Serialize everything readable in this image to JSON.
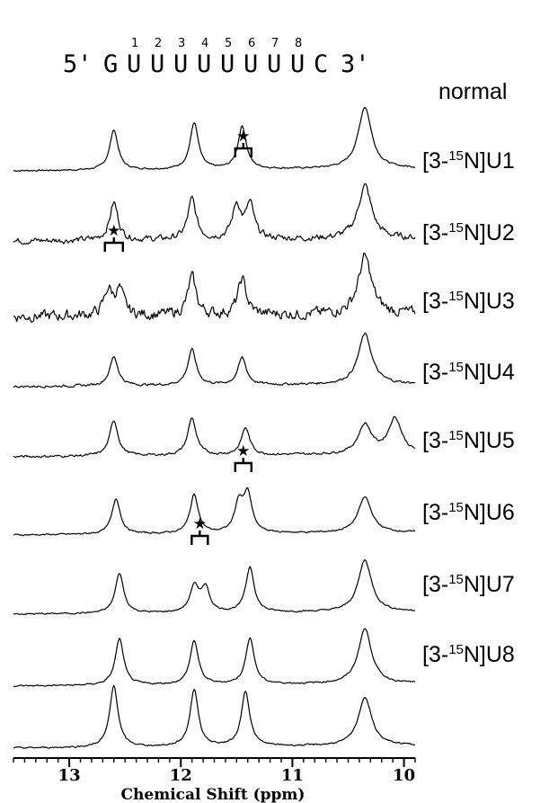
{
  "sequence": {
    "prefix": "5'",
    "bases": [
      "G",
      "U",
      "U",
      "U",
      "U",
      "U",
      "U",
      "U",
      "U",
      "C"
    ],
    "suffix": "3'",
    "position_numbers": [
      "1",
      "2",
      "3",
      "4",
      "5",
      "6",
      "7",
      "8"
    ]
  },
  "chart_data": {
    "type": "line",
    "xlabel": "Chemical Shift (ppm)",
    "xlim": [
      13.5,
      9.9
    ],
    "x_reversed": true,
    "x_ticks": [
      13,
      12,
      11,
      10
    ],
    "x_tick_labels": [
      "13",
      "12",
      "11",
      "10"
    ],
    "series": [
      {
        "name": "normal",
        "label_main": "normal",
        "label_sup": "",
        "label_rest": "",
        "peaks": [
          {
            "ppm": 12.6,
            "height": 0.62
          },
          {
            "ppm": 11.88,
            "height": 0.72
          },
          {
            "ppm": 11.45,
            "height": 0.66
          },
          {
            "ppm": 10.35,
            "height": 0.95
          }
        ],
        "noise": 0.01,
        "starred": null
      },
      {
        "name": "[3-15N]U1",
        "label_main": "[3-",
        "label_sup": "15",
        "label_rest": "N]U1",
        "peaks": [
          {
            "ppm": 12.6,
            "height": 0.58
          },
          {
            "ppm": 11.9,
            "height": 0.62
          },
          {
            "ppm": 11.5,
            "height": 0.52
          },
          {
            "ppm": 11.38,
            "height": 0.52
          },
          {
            "ppm": 10.35,
            "height": 0.82
          }
        ],
        "noise": 0.04,
        "starred": 11.44
      },
      {
        "name": "[3-15N]U2",
        "label_main": "[3-",
        "label_sup": "15",
        "label_rest": "N]U2",
        "peaks": [
          {
            "ppm": 12.65,
            "height": 0.38
          },
          {
            "ppm": 12.55,
            "height": 0.38
          },
          {
            "ppm": 11.9,
            "height": 0.58
          },
          {
            "ppm": 11.45,
            "height": 0.55
          },
          {
            "ppm": 10.35,
            "height": 0.88
          }
        ],
        "noise": 0.07,
        "starred": 12.6
      },
      {
        "name": "[3-15N]U3",
        "label_main": "[3-",
        "label_sup": "15",
        "label_rest": "N]U3",
        "peaks": [
          {
            "ppm": 12.6,
            "height": 0.45
          },
          {
            "ppm": 11.9,
            "height": 0.55
          },
          {
            "ppm": 11.45,
            "height": 0.42
          },
          {
            "ppm": 10.35,
            "height": 0.78
          }
        ],
        "noise": 0.015,
        "starred": null
      },
      {
        "name": "[3-15N]U4",
        "label_main": "[3-",
        "label_sup": "15",
        "label_rest": "N]U4",
        "peaks": [
          {
            "ppm": 12.6,
            "height": 0.55
          },
          {
            "ppm": 11.9,
            "height": 0.58
          },
          {
            "ppm": 11.42,
            "height": 0.42
          },
          {
            "ppm": 10.35,
            "height": 0.45
          },
          {
            "ppm": 10.08,
            "height": 0.55
          }
        ],
        "noise": 0.015,
        "starred": null
      },
      {
        "name": "[3-15N]U5",
        "label_main": "[3-",
        "label_sup": "15",
        "label_rest": "N]U5",
        "peaks": [
          {
            "ppm": 12.58,
            "height": 0.55
          },
          {
            "ppm": 11.88,
            "height": 0.6
          },
          {
            "ppm": 11.48,
            "height": 0.45
          },
          {
            "ppm": 11.4,
            "height": 0.58
          },
          {
            "ppm": 10.35,
            "height": 0.55
          }
        ],
        "noise": 0.01,
        "starred": 11.44
      },
      {
        "name": "[3-15N]U6",
        "label_main": "[3-",
        "label_sup": "15",
        "label_rest": "N]U6",
        "peaks": [
          {
            "ppm": 12.55,
            "height": 0.62
          },
          {
            "ppm": 11.88,
            "height": 0.4
          },
          {
            "ppm": 11.78,
            "height": 0.38
          },
          {
            "ppm": 11.38,
            "height": 0.7
          },
          {
            "ppm": 10.35,
            "height": 0.8
          }
        ],
        "noise": 0.01,
        "starred": 11.83
      },
      {
        "name": "[3-15N]U7",
        "label_main": "[3-",
        "label_sup": "15",
        "label_rest": "N]U7",
        "peaks": [
          {
            "ppm": 12.55,
            "height": 0.72
          },
          {
            "ppm": 11.88,
            "height": 0.68
          },
          {
            "ppm": 11.38,
            "height": 0.72
          },
          {
            "ppm": 10.35,
            "height": 0.85
          }
        ],
        "noise": 0.01,
        "starred": null
      },
      {
        "name": "[3-15N]U8",
        "label_main": "[3-",
        "label_sup": "15",
        "label_rest": "N]U8",
        "peaks": [
          {
            "ppm": 12.6,
            "height": 0.95
          },
          {
            "ppm": 11.88,
            "height": 0.88
          },
          {
            "ppm": 11.42,
            "height": 0.85
          },
          {
            "ppm": 10.35,
            "height": 0.75
          }
        ],
        "noise": 0.01,
        "starred": null
      }
    ]
  }
}
